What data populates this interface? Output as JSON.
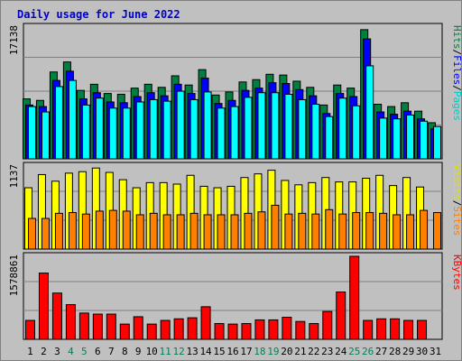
{
  "chart_data": [
    {
      "type": "bar",
      "title": "Daily usage for June 2022",
      "panel": "top",
      "y_max_label": "17138",
      "ylim": [
        0,
        17138
      ],
      "grid": true,
      "categories": [
        "1",
        "2",
        "3",
        "4",
        "5",
        "6",
        "7",
        "8",
        "9",
        "10",
        "11",
        "12",
        "13",
        "14",
        "15",
        "16",
        "17",
        "18",
        "19",
        "20",
        "21",
        "22",
        "23",
        "24",
        "25",
        "26",
        "27",
        "28",
        "29",
        "30",
        "31"
      ],
      "weekend_days": [
        "4",
        "5",
        "11",
        "12",
        "18",
        "19",
        "25",
        "26"
      ],
      "series": [
        {
          "name": "Hits",
          "color": "#008040",
          "values": [
            7800,
            7600,
            11300,
            12600,
            8900,
            9700,
            8500,
            8400,
            9200,
            9700,
            9300,
            10800,
            9600,
            11600,
            8300,
            8700,
            10000,
            10300,
            11000,
            10900,
            10100,
            9300,
            7000,
            9600,
            9200,
            16800,
            7100,
            6800,
            7300,
            6200,
            4700
          ]
        },
        {
          "name": "Files",
          "color": "#0000ff",
          "values": [
            7000,
            6800,
            10200,
            11400,
            7800,
            8600,
            7400,
            7300,
            8100,
            8600,
            8200,
            9700,
            8500,
            10500,
            7200,
            7600,
            8900,
            9200,
            9900,
            9800,
            9000,
            8200,
            5900,
            8500,
            8100,
            15600,
            6100,
            5800,
            6200,
            5200,
            3900
          ]
        },
        {
          "name": "Pages",
          "color": "#00ffff",
          "values": [
            6800,
            6100,
            9400,
            10200,
            7000,
            7900,
            6600,
            6600,
            7400,
            7700,
            7500,
            8800,
            7700,
            8700,
            6600,
            6800,
            8000,
            8600,
            8600,
            8400,
            7700,
            7100,
            5500,
            7900,
            6900,
            12100,
            5300,
            5200,
            5700,
            4900,
            4200
          ]
        }
      ],
      "axis_title": [
        "Hits",
        "/",
        "Files",
        "/",
        "Pages"
      ]
    },
    {
      "type": "bar",
      "panel": "middle",
      "y_max_label": "1137",
      "ylim": [
        0,
        1137
      ],
      "grid": true,
      "categories": [
        "1",
        "2",
        "3",
        "4",
        "5",
        "6",
        "7",
        "8",
        "9",
        "10",
        "11",
        "12",
        "13",
        "14",
        "15",
        "16",
        "17",
        "18",
        "19",
        "20",
        "21",
        "22",
        "23",
        "24",
        "25",
        "26",
        "27",
        "28",
        "29",
        "30",
        "31"
      ],
      "series": [
        {
          "name": "Visits",
          "color": "#ffff00",
          "values": [
            840,
            1020,
            930,
            1040,
            1060,
            1110,
            1050,
            950,
            840,
            910,
            910,
            890,
            1010,
            860,
            840,
            860,
            980,
            1030,
            1080,
            940,
            880,
            910,
            980,
            920,
            920,
            970,
            1010,
            870,
            980,
            850,
            0
          ]
        },
        {
          "name": "Sites",
          "color": "#ff8000",
          "values": [
            420,
            420,
            490,
            500,
            480,
            520,
            530,
            520,
            470,
            490,
            470,
            470,
            490,
            470,
            470,
            470,
            490,
            510,
            600,
            480,
            490,
            480,
            540,
            480,
            500,
            500,
            490,
            470,
            470,
            530,
            500
          ]
        }
      ],
      "axis_title": [
        "Visits",
        "/",
        "Sites"
      ]
    },
    {
      "type": "bar",
      "panel": "bottom",
      "y_max_label": "1578861",
      "ylim": [
        0,
        1578861
      ],
      "grid": true,
      "categories": [
        "1",
        "2",
        "3",
        "4",
        "5",
        "6",
        "7",
        "8",
        "9",
        "10",
        "11",
        "12",
        "13",
        "14",
        "15",
        "16",
        "17",
        "18",
        "19",
        "20",
        "21",
        "22",
        "23",
        "24",
        "25",
        "26",
        "27",
        "28",
        "29",
        "30",
        "31"
      ],
      "series": [
        {
          "name": "KBytes",
          "color": "#ff0000",
          "values": [
            360000,
            1260000,
            880000,
            660000,
            500000,
            480000,
            480000,
            290000,
            430000,
            290000,
            360000,
            390000,
            410000,
            620000,
            300000,
            290000,
            300000,
            370000,
            370000,
            420000,
            340000,
            300000,
            530000,
            900000,
            1578861,
            360000,
            390000,
            390000,
            360000,
            360000,
            0
          ]
        }
      ],
      "axis_title": [
        "KBytes"
      ]
    }
  ],
  "title": "Daily usage for June 2022"
}
